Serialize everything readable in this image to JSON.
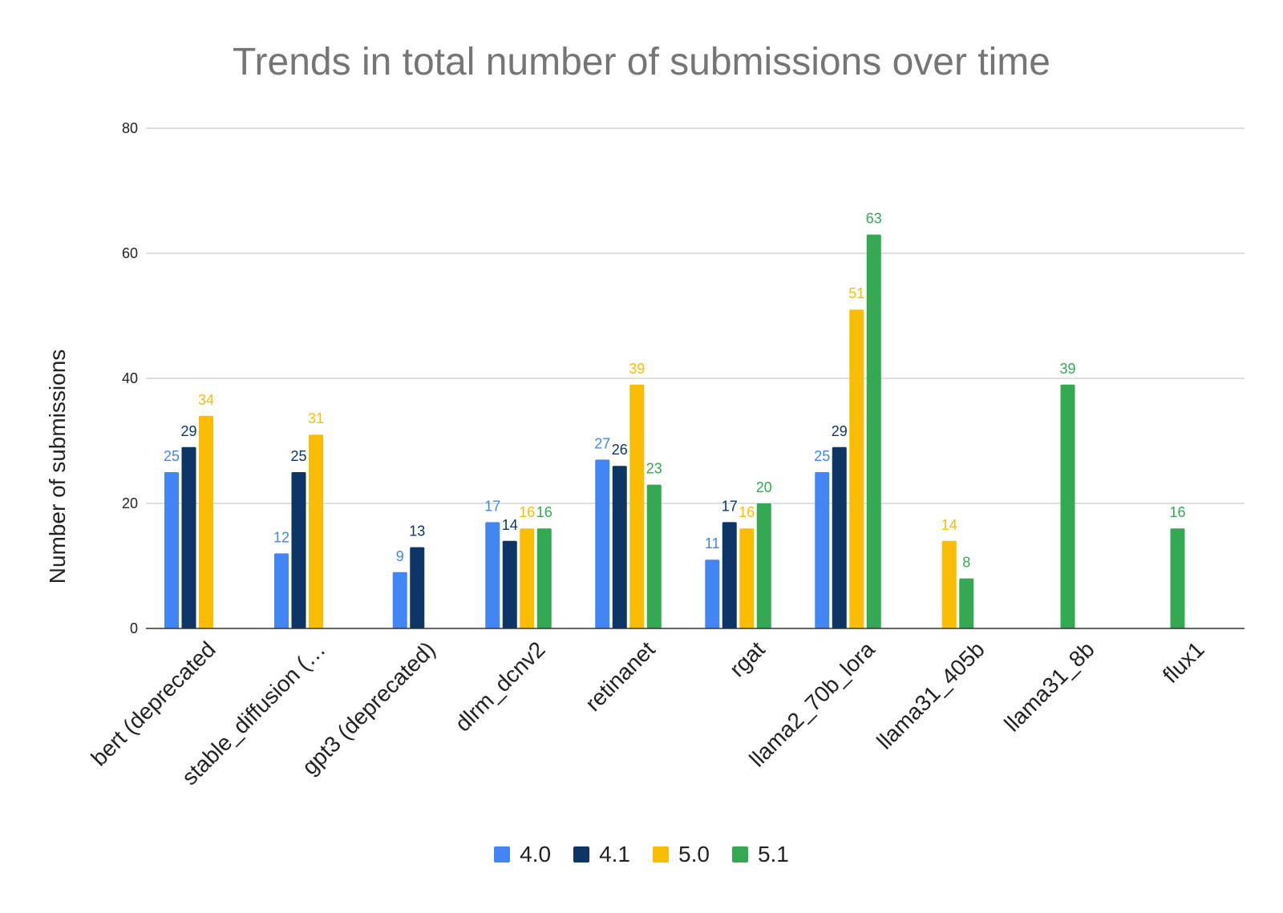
{
  "chart_data": {
    "type": "bar",
    "title": "Trends in total number of submissions over time",
    "xlabel": "",
    "ylabel": "Number of submissions",
    "ylim": [
      0,
      80
    ],
    "yticks": [
      "0",
      "20",
      "40",
      "60",
      "80"
    ],
    "grid": true,
    "legend_position": "bottom",
    "categories": [
      "bert (deprecated",
      "stable_diffusion (…",
      "gpt3 (deprecated)",
      "dlrm_dcnv2",
      "retinanet",
      "rgat",
      "llama2_70b_lora",
      "llama31_405b",
      "llama31_8b",
      "flux1"
    ],
    "series": [
      {
        "name": "4.0",
        "color": "#4285f4",
        "label_color": "#4285f4",
        "values": [
          25,
          12,
          9,
          17,
          27,
          11,
          25,
          null,
          null,
          null
        ]
      },
      {
        "name": "4.1",
        "color": "#0d3566",
        "label_color": "#0d3566",
        "values": [
          29,
          25,
          13,
          14,
          26,
          17,
          29,
          null,
          null,
          null
        ]
      },
      {
        "name": "5.0",
        "color": "#fbbc04",
        "label_color": "#fbbc04",
        "values": [
          34,
          31,
          null,
          16,
          39,
          16,
          51,
          14,
          null,
          null
        ]
      },
      {
        "name": "5.1",
        "color": "#34a853",
        "label_color": "#34a853",
        "values": [
          null,
          null,
          null,
          16,
          23,
          20,
          63,
          8,
          39,
          16
        ]
      }
    ]
  }
}
